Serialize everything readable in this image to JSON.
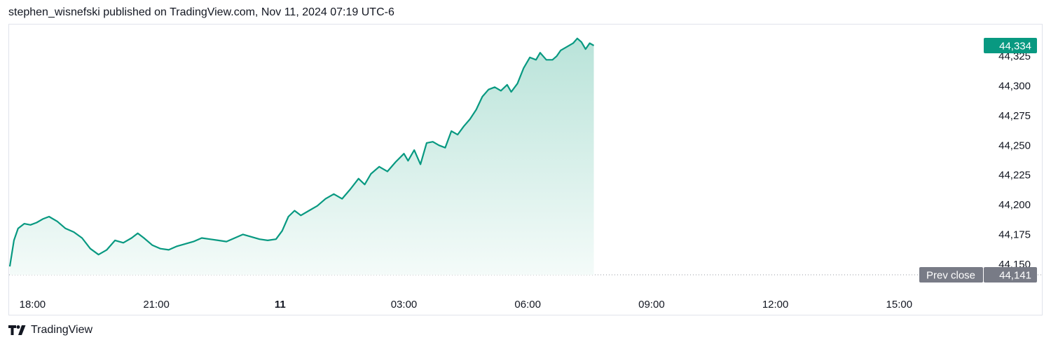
{
  "header": {
    "published_line": "stephen_wisnefski published on TradingView.com, Nov 11, 2024 07:19 UTC-6"
  },
  "footer": {
    "brand": "TradingView",
    "logo_icon": "tradingview-logo-icon"
  },
  "colors": {
    "line": "#089981",
    "fill_top": "#b9e3d9",
    "fill_bottom": "#f4fbf9",
    "prev_close_bg": "#787b86",
    "axis_text": "#131722",
    "border": "#e0e3eb"
  },
  "chart_data": {
    "type": "area",
    "x_ticks": [
      {
        "label": "18:00",
        "t": 0,
        "bold": false
      },
      {
        "label": "21:00",
        "t": 3,
        "bold": false
      },
      {
        "label": "11",
        "t": 6,
        "bold": true
      },
      {
        "label": "03:00",
        "t": 9,
        "bold": false
      },
      {
        "label": "06:00",
        "t": 12,
        "bold": false
      },
      {
        "label": "09:00",
        "t": 15,
        "bold": false
      },
      {
        "label": "12:00",
        "t": 18,
        "bold": false
      },
      {
        "label": "15:00",
        "t": 21,
        "bold": false
      }
    ],
    "x_range_hours": [
      -0.55,
      22.2
    ],
    "y_ticks": [
      44150,
      44175,
      44200,
      44225,
      44250,
      44275,
      44300,
      44325
    ],
    "ylim": [
      44141,
      44334
    ],
    "last_price": {
      "label": "44,334",
      "value": 44334
    },
    "prev_close": {
      "label": "Prev close",
      "value_label": "44,141",
      "value": 44141
    },
    "series": [
      {
        "x_hours": [
          -0.55,
          -0.45,
          -0.35,
          -0.2,
          -0.05,
          0.1,
          0.25,
          0.4,
          0.6,
          0.8,
          1.0,
          1.2,
          1.4,
          1.6,
          1.8,
          2.0,
          2.2,
          2.4,
          2.55,
          2.7,
          2.9,
          3.1,
          3.3,
          3.5,
          3.7,
          3.9,
          4.1,
          4.3,
          4.5,
          4.7,
          4.9,
          5.1,
          5.3,
          5.5,
          5.7,
          5.9,
          6.05,
          6.2,
          6.35,
          6.5,
          6.7,
          6.9,
          7.1,
          7.3,
          7.5,
          7.7,
          7.9,
          8.05,
          8.2,
          8.4,
          8.6,
          8.8,
          9.0,
          9.1,
          9.25,
          9.4,
          9.55,
          9.7,
          9.85,
          10.0,
          10.15,
          10.3,
          10.45,
          10.6,
          10.75,
          10.9,
          11.05,
          11.2,
          11.35,
          11.5,
          11.6,
          11.75,
          11.9,
          12.05,
          12.2,
          12.3,
          12.45,
          12.6,
          12.7,
          12.8,
          12.95,
          13.1,
          13.2,
          13.3,
          13.4,
          13.5,
          13.6
        ],
        "values": [
          44148,
          44170,
          44180,
          44184,
          44183,
          44185,
          44188,
          44190,
          44186,
          44180,
          44177,
          44172,
          44163,
          44158,
          44162,
          44170,
          44168,
          44172,
          44176,
          44172,
          44166,
          44163,
          44162,
          44165,
          44167,
          44169,
          44172,
          44171,
          44170,
          44169,
          44172,
          44175,
          44173,
          44171,
          44170,
          44171,
          44178,
          44190,
          44195,
          44191,
          44195,
          44199,
          44205,
          44209,
          44205,
          44213,
          44222,
          44217,
          44226,
          44232,
          44228,
          44236,
          44243,
          44237,
          44246,
          44234,
          44252,
          44253,
          44250,
          44248,
          44262,
          44259,
          44266,
          44272,
          44280,
          44291,
          44297,
          44299,
          44296,
          44301,
          44295,
          44302,
          44315,
          44324,
          44322,
          44328,
          44322,
          44322,
          44325,
          44330,
          44333,
          44336,
          44340,
          44337,
          44331,
          44336,
          44334
        ]
      }
    ]
  }
}
